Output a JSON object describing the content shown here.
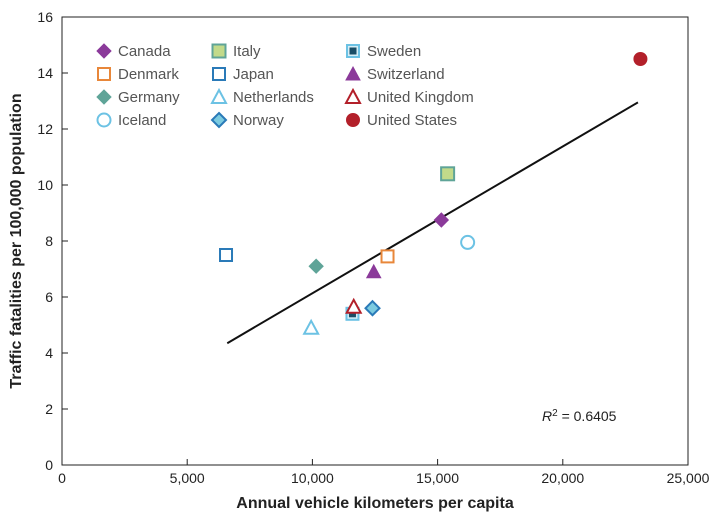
{
  "chart_data": {
    "type": "scatter",
    "xlabel": "Annual vehicle kilometers per capita",
    "ylabel": "Traffic fatalities per 100,000 population",
    "xlim": [
      0,
      25000
    ],
    "ylim": [
      0,
      16
    ],
    "xticks": [
      0,
      5000,
      10000,
      15000,
      20000,
      25000
    ],
    "xtick_labels": [
      "0",
      "5,000",
      "10,000",
      "15,000",
      "20,000",
      "25,000"
    ],
    "yticks": [
      0,
      2,
      4,
      6,
      8,
      10,
      12,
      14,
      16
    ],
    "ytick_labels": [
      "0",
      "2",
      "4",
      "6",
      "8",
      "10",
      "12",
      "14",
      "16"
    ],
    "grid": false,
    "legend_position": "top-left",
    "series": [
      {
        "name": "Canada",
        "marker": "diamond",
        "fill": "#8b3a9a",
        "stroke": "#8b3a9a",
        "x": 15150,
        "y": 8.75
      },
      {
        "name": "Denmark",
        "marker": "square",
        "fill": "#ffffff",
        "stroke": "#e8873a",
        "x": 13000,
        "y": 7.45
      },
      {
        "name": "Germany",
        "marker": "diamond",
        "fill": "#5fa498",
        "stroke": "#5fa498",
        "x": 10150,
        "y": 7.1
      },
      {
        "name": "Iceland",
        "marker": "circle",
        "fill": "#ffffff",
        "stroke": "#6cc2e4",
        "x": 16200,
        "y": 7.95
      },
      {
        "name": "Italy",
        "marker": "square-inner",
        "fill": "#c2da8a",
        "stroke": "#5fa498",
        "x": 15400,
        "y": 10.4
      },
      {
        "name": "Japan",
        "marker": "square",
        "fill": "#ffffff",
        "stroke": "#2a7ab8",
        "x": 6550,
        "y": 7.5
      },
      {
        "name": "Netherlands",
        "marker": "triangle",
        "fill": "#ffffff",
        "stroke": "#6cc2e4",
        "x": 9950,
        "y": 4.9
      },
      {
        "name": "Norway",
        "marker": "diamond-inner",
        "fill": "#7ccbe0",
        "stroke": "#2a7ab8",
        "x": 12400,
        "y": 5.6
      },
      {
        "name": "Sweden",
        "marker": "square-dark",
        "fill": "#1a4d66",
        "stroke": "#6cc2e4",
        "x": 11600,
        "y": 5.4
      },
      {
        "name": "Switzerland",
        "marker": "triangle-filled",
        "fill": "#8b3a9a",
        "stroke": "#8b3a9a",
        "x": 12450,
        "y": 6.9
      },
      {
        "name": "United Kingdom",
        "marker": "triangle",
        "fill": "#ffffff",
        "stroke": "#b3202a",
        "x": 11650,
        "y": 5.65
      },
      {
        "name": "United States",
        "marker": "circle-filled",
        "fill": "#b3202a",
        "stroke": "#b3202a",
        "x": 23100,
        "y": 14.5
      }
    ],
    "trendline": {
      "x": [
        6600,
        23000
      ],
      "y": [
        4.35,
        12.95
      ],
      "color": "#111111"
    },
    "annotation": {
      "r2_label": "R",
      "r2_sup": "2",
      "r2_value": " = 0.6405"
    }
  }
}
